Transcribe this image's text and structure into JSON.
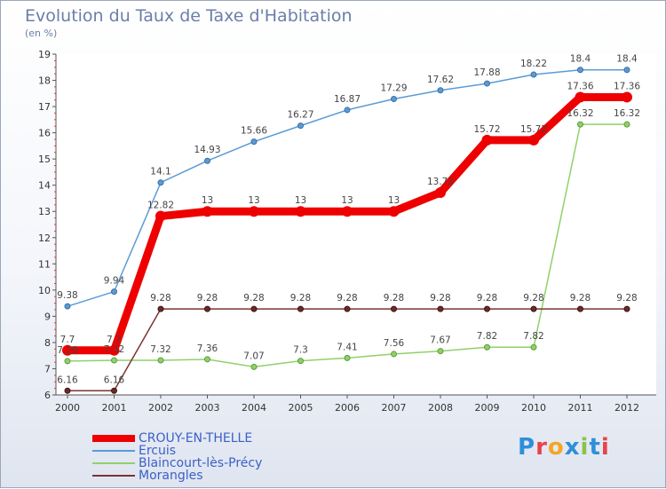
{
  "header": {
    "title": "Evolution du Taux de Taxe d'Habitation",
    "unit": "(en %)"
  },
  "logo": {
    "text": "Proxiti",
    "colors": [
      "#2e8fd8",
      "#e8434a",
      "#f5a623",
      "#2e8fd8",
      "#8bc34a",
      "#2e8fd8",
      "#e8434a"
    ]
  },
  "chart_data": {
    "type": "line",
    "x": [
      "2000",
      "2001",
      "2002",
      "2003",
      "2004",
      "2005",
      "2006",
      "2007",
      "2008",
      "2009",
      "2010",
      "2011",
      "2012"
    ],
    "ylim": [
      6,
      19
    ],
    "yticks": [
      6,
      7,
      8,
      9,
      10,
      11,
      12,
      13,
      14,
      15,
      16,
      17,
      18,
      19
    ],
    "grid": false,
    "legend_position": "bottom-left",
    "series": [
      {
        "name": "CROUY-EN-THELLE",
        "color": "#ee0000",
        "values": [
          7.7,
          7.7,
          12.82,
          13,
          13,
          13,
          13,
          13,
          13.72,
          15.72,
          15.72,
          17.36,
          17.36
        ],
        "labels": [
          "7.7",
          "7.7",
          "12.82",
          "13",
          "13",
          "13",
          "13",
          "13",
          "13.72",
          "15.72",
          "15.72",
          "17.36",
          "17.36"
        ]
      },
      {
        "name": "Ercuis",
        "color": "#5b9bd5",
        "values": [
          9.38,
          9.94,
          14.1,
          14.93,
          15.66,
          16.27,
          16.87,
          17.29,
          17.62,
          17.88,
          18.22,
          18.4,
          18.4
        ],
        "labels": [
          "9.38",
          "9.94",
          "14.1",
          "14.93",
          "15.66",
          "16.27",
          "16.87",
          "17.29",
          "17.62",
          "17.88",
          "18.22",
          "18.4",
          "18.4"
        ]
      },
      {
        "name": "Blaincourt-lès-Précy",
        "color": "#8fd16a",
        "values": [
          7.29,
          7.32,
          7.32,
          7.36,
          7.07,
          7.3,
          7.41,
          7.56,
          7.67,
          7.82,
          7.82,
          16.32,
          16.32
        ],
        "labels": [
          "7.29",
          "7.32",
          "7.32",
          "7.36",
          "7.07",
          "7.3",
          "7.41",
          "7.56",
          "7.67",
          "7.82",
          "7.82",
          "16.32",
          "16.32"
        ]
      },
      {
        "name": "Morangles",
        "color": "#7a3434",
        "values": [
          6.16,
          6.16,
          9.28,
          9.28,
          9.28,
          9.28,
          9.28,
          9.28,
          9.28,
          9.28,
          9.28,
          9.28,
          9.28
        ],
        "labels": [
          "6.16",
          "6.16",
          "9.28",
          "9.28",
          "9.28",
          "9.28",
          "9.28",
          "9.28",
          "9.28",
          "9.28",
          "9.28",
          "9.28",
          "9.28"
        ]
      }
    ]
  }
}
